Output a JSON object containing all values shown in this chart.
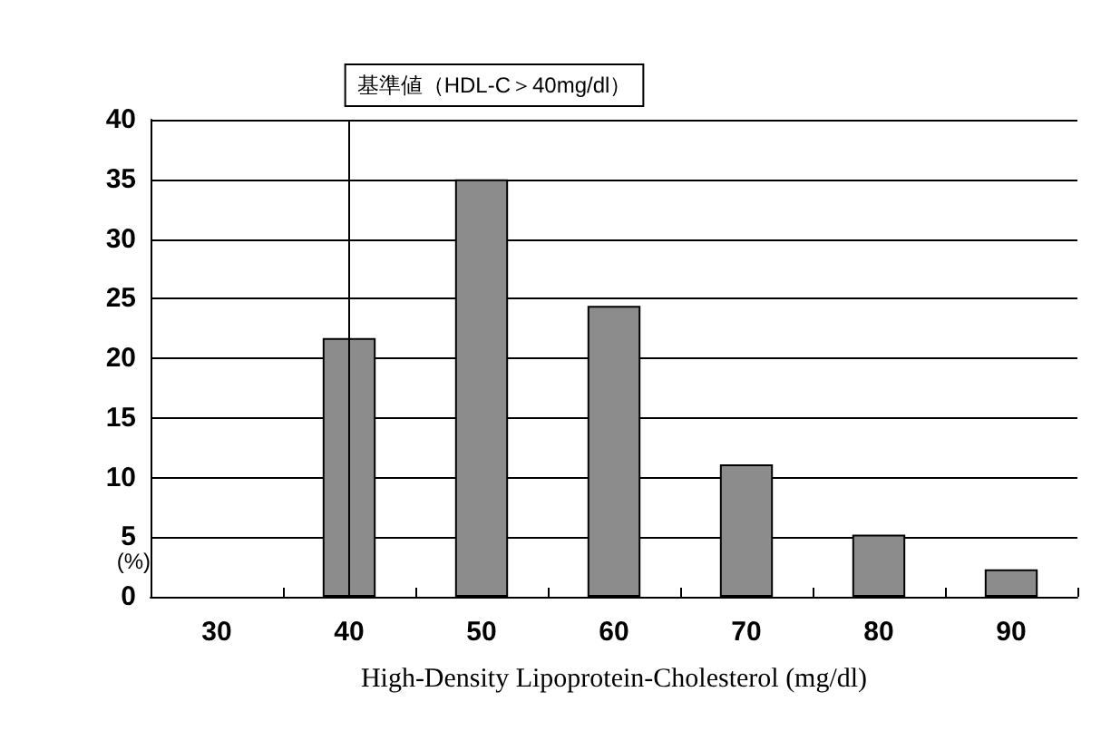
{
  "chart_data": {
    "type": "bar",
    "xlabel": "High-Density Lipoprotein-Cholesterol (mg/dl)",
    "ylabel": "(%)",
    "categories": [
      "30",
      "40",
      "50",
      "60",
      "70",
      "80",
      "90"
    ],
    "values": [
      0,
      21.7,
      35,
      24.4,
      11.1,
      5.2,
      2.3
    ],
    "color": "#8c8c8c",
    "ylim": [
      0,
      40
    ],
    "yticks": [
      0,
      5,
      10,
      15,
      20,
      25,
      30,
      35,
      40
    ],
    "grid": "y",
    "ref_lines": [
      {
        "axis": "x",
        "value": "40",
        "label": "基準値（HDL-C＞40mg/dl）",
        "color": "#000000"
      }
    ]
  }
}
